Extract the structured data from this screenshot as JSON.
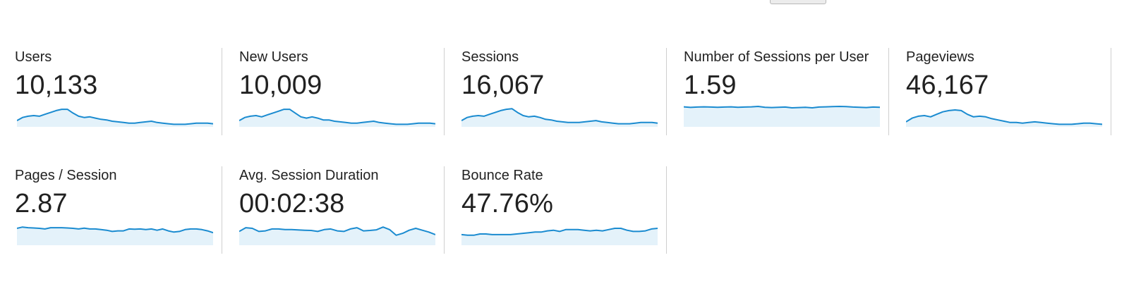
{
  "colors": {
    "line": "#1a8bd0",
    "fill": "#e4f2fa",
    "divider": "#cfcfcf",
    "text": "#222222"
  },
  "metrics": [
    {
      "id": "users",
      "label": "Users",
      "value": "10,133",
      "trend": [
        5,
        7.5,
        8.5,
        9,
        8.5,
        10,
        11.5,
        13,
        14,
        14,
        11,
        8.5,
        7.5,
        8,
        7,
        6,
        5.5,
        4.5,
        4,
        3.5,
        3,
        3,
        3.5,
        4,
        4.5,
        3.5,
        3,
        2.5,
        2,
        2,
        2,
        2.5,
        3,
        3,
        3,
        2.5
      ]
    },
    {
      "id": "new-users",
      "label": "New Users",
      "value": "10,009",
      "trend": [
        5,
        7.5,
        8.5,
        9,
        8,
        9.5,
        11,
        12.5,
        14,
        14,
        11,
        8,
        7,
        8,
        7,
        5.5,
        5.5,
        4.5,
        4,
        3.5,
        3,
        3,
        3.5,
        4,
        4.5,
        3.5,
        3,
        2.5,
        2,
        2,
        2,
        2.5,
        3,
        3,
        3,
        2.5
      ]
    },
    {
      "id": "sessions",
      "label": "Sessions",
      "value": "16,067",
      "trend": [
        5,
        7.5,
        8.5,
        9,
        8.5,
        10,
        11.5,
        13,
        14,
        14.5,
        11.5,
        9,
        8,
        8.5,
        7.5,
        6,
        5.5,
        4.5,
        4,
        3.5,
        3.5,
        3.5,
        4,
        4.5,
        5,
        4,
        3.5,
        3,
        2.5,
        2.5,
        2.5,
        3,
        3.5,
        3.5,
        3.5,
        3
      ]
    },
    {
      "id": "sessions-per-user",
      "label": "Number of Sessions per User",
      "value": "1.59",
      "trend": [
        16,
        15.5,
        15.8,
        16,
        15.8,
        15.6,
        15.8,
        16,
        15.6,
        15.8,
        16,
        16.3,
        15.6,
        15.4,
        15.6,
        15.8,
        15.2,
        15.4,
        15.6,
        15.2,
        15.8,
        16,
        16.2,
        16.3,
        16.2,
        15.8,
        15.6,
        15.4,
        15.8,
        15.6
      ]
    },
    {
      "id": "pageviews",
      "label": "Pageviews",
      "value": "46,167",
      "trend": [
        4,
        7,
        8.5,
        9,
        8,
        10,
        12,
        13,
        13.5,
        13,
        10,
        8,
        8.5,
        8,
        6.5,
        5.5,
        4.5,
        3.5,
        3.5,
        3,
        3.5,
        4,
        3.5,
        3,
        2.5,
        2,
        2,
        2,
        2.5,
        3,
        3,
        2.5,
        2
      ]
    },
    {
      "id": "pages-per-session",
      "label": "Pages / Session",
      "value": "2.87",
      "trend": [
        13.5,
        14.5,
        14,
        13.8,
        13.5,
        13,
        14,
        14,
        14,
        13.8,
        13.5,
        13,
        13.6,
        13,
        13,
        12.5,
        12,
        11,
        11.5,
        11.5,
        13,
        12.8,
        13,
        12.5,
        13,
        12,
        13,
        11.5,
        10.5,
        11,
        12.5,
        13,
        13,
        12.5,
        11.5,
        10
      ]
    },
    {
      "id": "avg-session-duration",
      "label": "Avg. Session Duration",
      "value": "00:02:38",
      "trend": [
        11,
        14,
        13.5,
        11,
        11.5,
        13,
        13,
        12.5,
        12.5,
        12.2,
        12,
        11.8,
        11,
        12.5,
        13,
        11.5,
        11,
        13,
        14,
        11.5,
        11.8,
        12.3,
        14.5,
        12.5,
        8,
        9.5,
        12,
        13.5,
        12,
        10.5,
        8.5
      ]
    },
    {
      "id": "bounce-rate",
      "label": "Bounce Rate",
      "value": "47.76%",
      "trend": [
        8.5,
        8,
        8,
        9,
        9,
        8.5,
        8.5,
        8.5,
        8.5,
        9,
        9.5,
        10,
        10.5,
        10.5,
        11.5,
        12,
        11,
        12.5,
        12.5,
        12.5,
        12,
        11.5,
        12,
        11.5,
        12.5,
        13.5,
        13.5,
        12,
        11,
        11,
        11.5,
        13,
        13.5
      ]
    }
  ]
}
